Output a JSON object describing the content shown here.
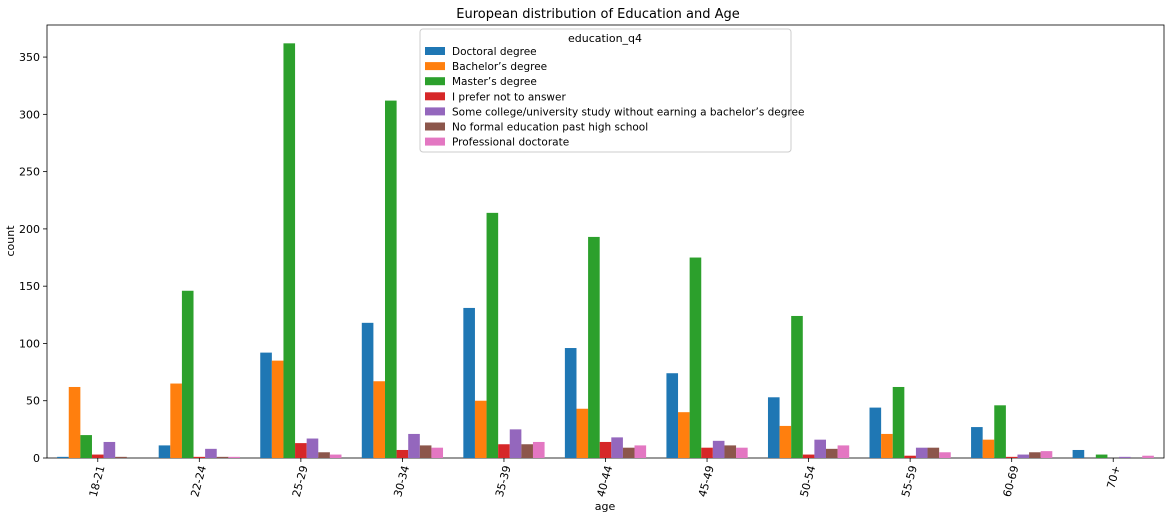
{
  "chart_data": {
    "type": "bar",
    "title": "European distribution of Education and Age",
    "xlabel": "age",
    "ylabel": "count",
    "ylim": [
      0,
      378
    ],
    "yticks": [
      0,
      50,
      100,
      150,
      200,
      250,
      300,
      350
    ],
    "legend_title": "education_q4",
    "legend_position": "top-center",
    "grid": false,
    "categories": [
      "18-21",
      "22-24",
      "25-29",
      "30-34",
      "35-39",
      "40-44",
      "45-49",
      "50-54",
      "55-59",
      "60-69",
      "70+"
    ],
    "series": [
      {
        "name": "Doctoral degree",
        "color": "#1f77b4",
        "values": [
          1,
          11,
          92,
          118,
          131,
          96,
          74,
          53,
          44,
          27,
          7
        ]
      },
      {
        "name": "Bachelor’s degree",
        "color": "#ff7f0e",
        "values": [
          62,
          65,
          85,
          67,
          50,
          43,
          40,
          28,
          21,
          16,
          0
        ]
      },
      {
        "name": "Master’s degree",
        "color": "#2ca02c",
        "values": [
          20,
          146,
          362,
          312,
          214,
          193,
          175,
          124,
          62,
          46,
          3
        ]
      },
      {
        "name": "I prefer not to answer",
        "color": "#d62728",
        "values": [
          3,
          1,
          13,
          7,
          12,
          14,
          9,
          3,
          2,
          1,
          0
        ]
      },
      {
        "name": "Some college/university study without earning a bachelor’s degree",
        "color": "#9467bd",
        "values": [
          14,
          8,
          17,
          21,
          25,
          18,
          15,
          16,
          9,
          3,
          1
        ]
      },
      {
        "name": "No formal education past high school",
        "color": "#8c564b",
        "values": [
          1,
          1,
          5,
          11,
          12,
          9,
          11,
          8,
          9,
          5,
          0
        ]
      },
      {
        "name": "Professional doctorate",
        "color": "#e377c2",
        "values": [
          0,
          1,
          3,
          9,
          14,
          11,
          9,
          11,
          5,
          6,
          2
        ]
      }
    ]
  }
}
